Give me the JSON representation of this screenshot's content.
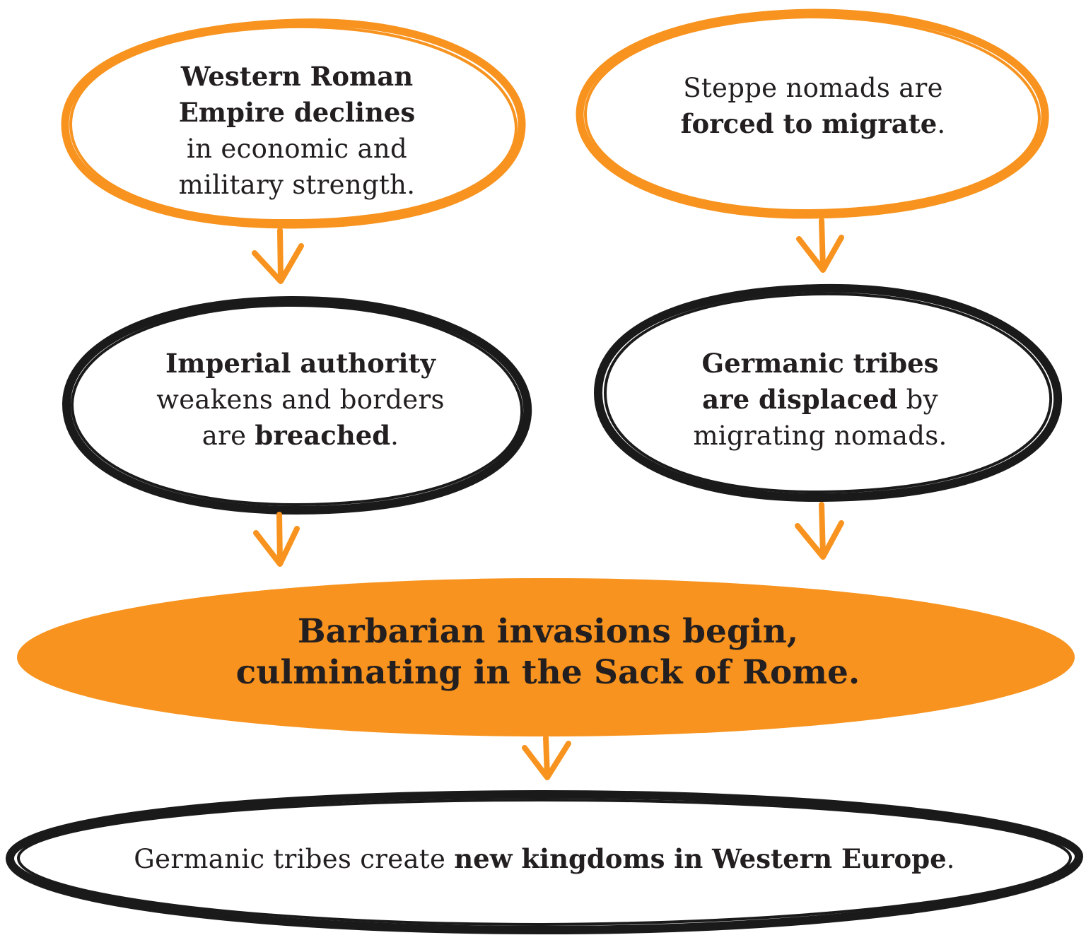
{
  "colors": {
    "orange": "#f7931e",
    "black": "#1a1a1a",
    "text": "#231f20"
  },
  "nodes": {
    "western_roman": {
      "line1": "Western Roman",
      "line2": "Empire declines",
      "line3": "in economic and",
      "line4": "military strength."
    },
    "steppe": {
      "line1": "Steppe nomads are",
      "line2_bold": "forced to migrate",
      "line2_end": "."
    },
    "imperial": {
      "line1": "Imperial authority",
      "line2": "weakens and borders",
      "line3_start": "are ",
      "line3_bold": "breached",
      "line3_end": "."
    },
    "germanic_displaced": {
      "line1": "Germanic tribes",
      "line2_bold": "are displaced",
      "line2_end": " by",
      "line3": "migrating nomads."
    },
    "barbarian": {
      "line1": "Barbarian invasions begin,",
      "line2": "culminating in the Sack of Rome."
    },
    "new_kingdoms": {
      "text_start": "Germanic tribes create ",
      "text_bold": "new kingdoms in Western Europe",
      "text_end": "."
    }
  }
}
